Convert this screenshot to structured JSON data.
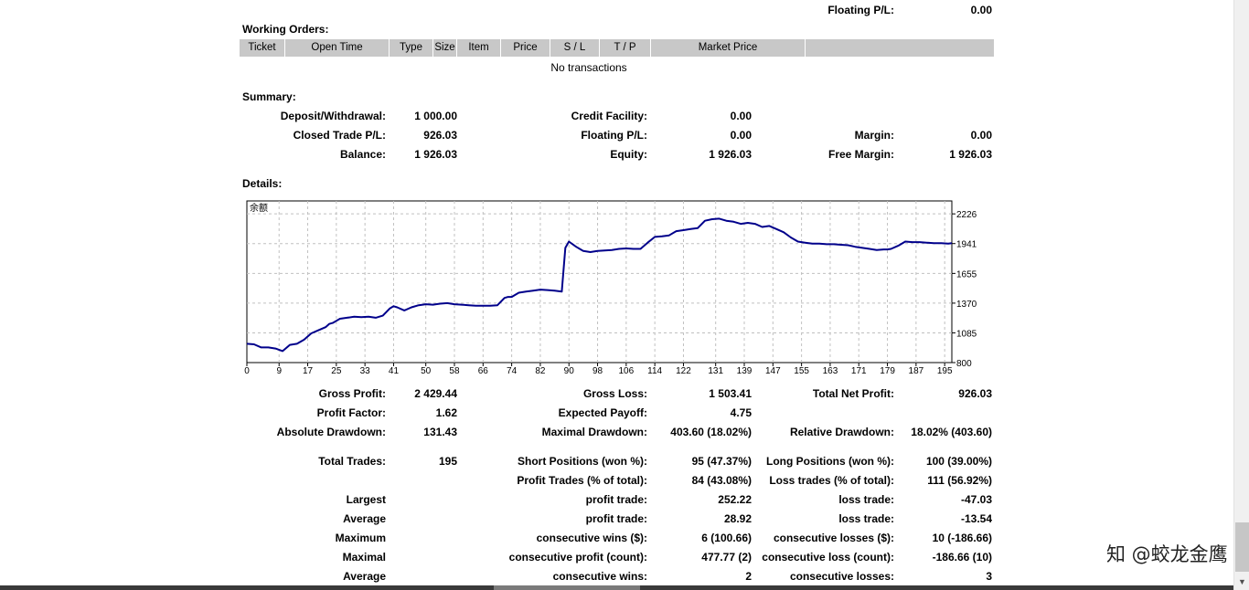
{
  "header": {
    "floating_pl_label": "Floating P/L:",
    "floating_pl_value": "0.00"
  },
  "working_orders": {
    "title": "Working Orders:",
    "columns": [
      "Ticket",
      "Open Time",
      "Type",
      "Size",
      "Item",
      "Price",
      "S / L",
      "T / P",
      "Market Price",
      ""
    ],
    "empty_text": "No transactions"
  },
  "summary": {
    "title": "Summary:",
    "rows": [
      [
        {
          "label": "Deposit/Withdrawal:",
          "value": "1 000.00"
        },
        {
          "label": "Credit Facility:",
          "value": "0.00"
        },
        {
          "label": "",
          "value": ""
        }
      ],
      [
        {
          "label": "Closed Trade P/L:",
          "value": "926.03"
        },
        {
          "label": "Floating P/L:",
          "value": "0.00"
        },
        {
          "label": "Margin:",
          "value": "0.00"
        }
      ],
      [
        {
          "label": "Balance:",
          "value": "1 926.03"
        },
        {
          "label": "Equity:",
          "value": "1 926.03"
        },
        {
          "label": "Free Margin:",
          "value": "1 926.03"
        }
      ]
    ]
  },
  "details": {
    "title": "Details:"
  },
  "chart_data": {
    "type": "line",
    "title": "余额",
    "ylim": [
      800,
      2350
    ],
    "xlim": [
      0,
      197
    ],
    "yticks": [
      2226,
      1941,
      1655,
      1370,
      1085,
      800
    ],
    "xticks": [
      0,
      9,
      17,
      25,
      33,
      41,
      50,
      58,
      66,
      74,
      82,
      90,
      98,
      106,
      114,
      122,
      131,
      139,
      147,
      155,
      163,
      171,
      179,
      187,
      195
    ],
    "grid": true,
    "color": "#00008b",
    "series": [
      {
        "x": [
          0,
          2,
          4,
          6,
          8,
          10,
          12,
          14,
          16,
          18,
          20,
          22,
          23,
          24,
          25,
          26,
          28,
          30,
          32,
          34,
          36,
          38,
          40,
          41,
          42,
          44,
          46,
          48,
          50,
          52,
          54,
          56,
          58,
          60,
          62,
          64,
          66,
          68,
          70,
          72,
          73,
          74,
          76,
          78,
          80,
          82,
          84,
          86,
          88,
          89,
          90,
          92,
          94,
          96,
          98,
          100,
          102,
          104,
          106,
          108,
          110,
          112,
          114,
          116,
          118,
          120,
          122,
          124,
          126,
          128,
          130,
          132,
          134,
          136,
          138,
          140,
          142,
          144,
          146,
          148,
          150,
          152,
          154,
          156,
          158,
          160,
          162,
          164,
          166,
          168,
          170,
          172,
          174,
          176,
          178,
          179,
          180,
          182,
          184,
          186,
          188,
          190,
          192,
          194,
          196,
          197
        ],
        "y": [
          980,
          975,
          945,
          945,
          935,
          910,
          970,
          980,
          1020,
          1080,
          1110,
          1140,
          1170,
          1180,
          1200,
          1220,
          1230,
          1240,
          1235,
          1240,
          1230,
          1250,
          1320,
          1340,
          1330,
          1300,
          1330,
          1350,
          1360,
          1355,
          1365,
          1370,
          1360,
          1355,
          1350,
          1345,
          1345,
          1345,
          1350,
          1420,
          1430,
          1430,
          1470,
          1480,
          1490,
          1500,
          1495,
          1490,
          1480,
          1900,
          1960,
          1910,
          1870,
          1860,
          1870,
          1875,
          1880,
          1890,
          1895,
          1890,
          1890,
          1950,
          2005,
          2010,
          2020,
          2060,
          2070,
          2080,
          2090,
          2160,
          2175,
          2180,
          2160,
          2150,
          2130,
          2140,
          2130,
          2100,
          2110,
          2080,
          2050,
          2000,
          1960,
          1950,
          1940,
          1940,
          1935,
          1935,
          1930,
          1925,
          1910,
          1900,
          1890,
          1880,
          1885,
          1885,
          1890,
          1920,
          1960,
          1955,
          1955,
          1950,
          1945,
          1945,
          1940,
          1945
        ]
      }
    ]
  },
  "stats": {
    "rows": [
      [
        {
          "label": "Gross Profit:",
          "value": "2 429.44"
        },
        {
          "label": "Gross Loss:",
          "value": "1 503.41"
        },
        {
          "label": "Total Net Profit:",
          "value": "926.03"
        }
      ],
      [
        {
          "label": "Profit Factor:",
          "value": "1.62"
        },
        {
          "label": "Expected Payoff:",
          "value": "4.75"
        },
        {
          "label": "",
          "value": ""
        }
      ],
      [
        {
          "label": "Absolute Drawdown:",
          "value": "131.43"
        },
        {
          "label": "Maximal Drawdown:",
          "value": "403.60 (18.02%)"
        },
        {
          "label": "Relative Drawdown:",
          "value": "18.02% (403.60)"
        }
      ],
      [
        {
          "label": "Total Trades:",
          "value": "195"
        },
        {
          "label": "Short Positions (won %):",
          "value": "95 (47.37%)"
        },
        {
          "label": "Long Positions (won %):",
          "value": "100 (39.00%)"
        }
      ],
      [
        {
          "label": "",
          "value": ""
        },
        {
          "label": "Profit Trades (% of total):",
          "value": "84 (43.08%)"
        },
        {
          "label": "Loss trades (% of total):",
          "value": "111 (56.92%)"
        }
      ],
      [
        {
          "label": "Largest",
          "value": ""
        },
        {
          "label": "profit trade:",
          "value": "252.22"
        },
        {
          "label": "loss trade:",
          "value": "-47.03"
        }
      ],
      [
        {
          "label": "Average",
          "value": ""
        },
        {
          "label": "profit trade:",
          "value": "28.92"
        },
        {
          "label": "loss trade:",
          "value": "-13.54"
        }
      ],
      [
        {
          "label": "Maximum",
          "value": ""
        },
        {
          "label": "consecutive wins ($):",
          "value": "6 (100.66)"
        },
        {
          "label": "consecutive losses ($):",
          "value": "10 (-186.66)"
        }
      ],
      [
        {
          "label": "Maximal",
          "value": ""
        },
        {
          "label": "consecutive profit (count):",
          "value": "477.77 (2)"
        },
        {
          "label": "consecutive loss (count):",
          "value": "-186.66 (10)"
        }
      ],
      [
        {
          "label": "Average",
          "value": ""
        },
        {
          "label": "consecutive wins:",
          "value": "2"
        },
        {
          "label": "consecutive losses:",
          "value": "3"
        }
      ]
    ]
  },
  "watermark": "知 @蛟龙金鹰"
}
